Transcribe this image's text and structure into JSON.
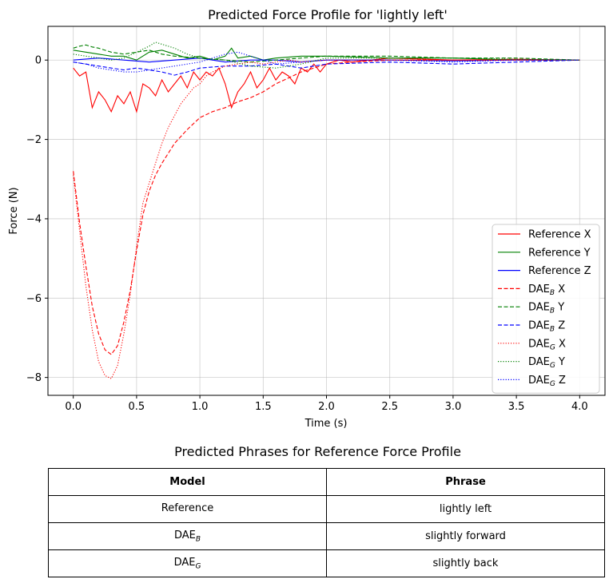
{
  "chart_data": {
    "type": "line",
    "title": "Predicted Force Profile for 'lightly left'",
    "xlabel": "Time (s)",
    "ylabel": "Force (N)",
    "xlim": [
      -0.2,
      4.2
    ],
    "ylim": [
      -8.45,
      0.85
    ],
    "xticks": [
      0.0,
      0.5,
      1.0,
      1.5,
      2.0,
      2.5,
      3.0,
      3.5,
      4.0
    ],
    "xtick_labels": [
      "0.0",
      "0.5",
      "1.0",
      "1.5",
      "2.0",
      "2.5",
      "3.0",
      "3.5",
      "4.0"
    ],
    "yticks": [
      0,
      -2,
      -4,
      -6,
      -8
    ],
    "ytick_labels": [
      "0",
      "−2",
      "−4",
      "−6",
      "−8"
    ],
    "grid": true,
    "legend_position": "lower-right",
    "series": [
      {
        "name": "Reference X",
        "color": "#ff0000",
        "style": "solid",
        "x": [
          0.0,
          0.05,
          0.1,
          0.15,
          0.2,
          0.25,
          0.3,
          0.35,
          0.4,
          0.45,
          0.5,
          0.55,
          0.6,
          0.65,
          0.7,
          0.75,
          0.8,
          0.85,
          0.9,
          0.95,
          1.0,
          1.05,
          1.1,
          1.15,
          1.2,
          1.25,
          1.3,
          1.35,
          1.4,
          1.45,
          1.5,
          1.55,
          1.6,
          1.65,
          1.7,
          1.75,
          1.8,
          1.85,
          1.9,
          1.95,
          2.0,
          2.1,
          2.2,
          2.5,
          3.0,
          3.5,
          4.0
        ],
        "y": [
          -0.2,
          -0.4,
          -0.3,
          -1.2,
          -0.8,
          -1.0,
          -1.3,
          -0.9,
          -1.1,
          -0.8,
          -1.3,
          -0.6,
          -0.7,
          -0.9,
          -0.5,
          -0.8,
          -0.6,
          -0.4,
          -0.7,
          -0.3,
          -0.5,
          -0.3,
          -0.4,
          -0.2,
          -0.6,
          -1.2,
          -0.8,
          -0.6,
          -0.3,
          -0.7,
          -0.5,
          -0.2,
          -0.5,
          -0.3,
          -0.4,
          -0.6,
          -0.2,
          -0.3,
          -0.1,
          -0.3,
          -0.1,
          0.0,
          -0.05,
          0.05,
          0.0,
          0.02,
          0.0
        ]
      },
      {
        "name": "Reference Y",
        "color": "#008000",
        "style": "solid",
        "x": [
          0.0,
          0.1,
          0.2,
          0.3,
          0.4,
          0.5,
          0.6,
          0.7,
          0.8,
          0.9,
          1.0,
          1.1,
          1.2,
          1.25,
          1.3,
          1.4,
          1.5,
          1.6,
          1.8,
          2.0,
          2.5,
          3.0,
          3.5,
          4.0
        ],
        "y": [
          0.25,
          0.2,
          0.15,
          0.1,
          0.1,
          0.0,
          0.2,
          0.25,
          0.15,
          0.05,
          0.1,
          0.0,
          0.1,
          0.3,
          0.05,
          0.1,
          0.0,
          0.05,
          0.1,
          0.1,
          0.05,
          0.05,
          0.0,
          0.0
        ]
      },
      {
        "name": "Reference Z",
        "color": "#0000ff",
        "style": "solid",
        "x": [
          0.0,
          0.2,
          0.4,
          0.6,
          0.8,
          1.0,
          1.2,
          1.4,
          1.6,
          1.8,
          2.0,
          2.5,
          3.0,
          3.5,
          4.0
        ],
        "y": [
          0.0,
          0.05,
          0.0,
          -0.05,
          0.0,
          0.05,
          -0.05,
          0.0,
          0.0,
          -0.05,
          0.0,
          0.0,
          -0.02,
          0.0,
          0.0
        ]
      },
      {
        "name": "DAE_B X",
        "color": "#ff0000",
        "style": "dashed",
        "x": [
          0.0,
          0.05,
          0.1,
          0.15,
          0.2,
          0.25,
          0.3,
          0.35,
          0.4,
          0.45,
          0.5,
          0.55,
          0.6,
          0.65,
          0.7,
          0.75,
          0.8,
          0.9,
          1.0,
          1.1,
          1.2,
          1.3,
          1.4,
          1.5,
          1.6,
          1.7,
          1.8,
          1.9,
          2.0,
          2.2,
          2.5,
          3.0,
          3.5,
          4.0
        ],
        "y": [
          -2.8,
          -4.1,
          -5.2,
          -6.2,
          -6.9,
          -7.3,
          -7.42,
          -7.2,
          -6.6,
          -5.8,
          -4.8,
          -3.9,
          -3.3,
          -2.9,
          -2.6,
          -2.35,
          -2.1,
          -1.75,
          -1.45,
          -1.3,
          -1.2,
          -1.05,
          -0.95,
          -0.8,
          -0.6,
          -0.45,
          -0.3,
          -0.2,
          -0.1,
          -0.05,
          0.0,
          0.0,
          0.0,
          0.0
        ]
      },
      {
        "name": "DAE_B Y",
        "color": "#008000",
        "style": "dashed",
        "x": [
          0.0,
          0.05,
          0.1,
          0.15,
          0.2,
          0.3,
          0.4,
          0.5,
          0.6,
          0.7,
          0.8,
          1.0,
          1.2,
          1.4,
          1.6,
          1.8,
          2.0,
          2.5,
          3.0,
          3.5,
          4.0
        ],
        "y": [
          0.3,
          0.35,
          0.38,
          0.33,
          0.3,
          0.2,
          0.15,
          0.2,
          0.25,
          0.15,
          0.1,
          0.05,
          0.0,
          -0.05,
          0.0,
          0.05,
          0.1,
          0.1,
          0.05,
          0.05,
          0.0
        ]
      },
      {
        "name": "DAE_B Z",
        "color": "#0000ff",
        "style": "dashed",
        "x": [
          0.0,
          0.1,
          0.2,
          0.3,
          0.4,
          0.5,
          0.6,
          0.7,
          0.8,
          0.9,
          1.0,
          1.2,
          1.4,
          1.6,
          1.8,
          2.0,
          2.5,
          3.0,
          3.5,
          4.0
        ],
        "y": [
          -0.05,
          -0.1,
          -0.15,
          -0.2,
          -0.25,
          -0.2,
          -0.25,
          -0.3,
          -0.38,
          -0.3,
          -0.2,
          -0.15,
          -0.15,
          -0.1,
          -0.2,
          -0.1,
          -0.05,
          -0.1,
          -0.05,
          0.0
        ]
      },
      {
        "name": "DAE_G X",
        "color": "#ff0000",
        "style": "dotted",
        "x": [
          0.0,
          0.05,
          0.1,
          0.15,
          0.2,
          0.25,
          0.3,
          0.35,
          0.4,
          0.45,
          0.5,
          0.55,
          0.6,
          0.65,
          0.7,
          0.75,
          0.8,
          0.85,
          0.9,
          0.95,
          1.0,
          1.05,
          1.1,
          1.2,
          1.3,
          1.4,
          1.5,
          1.6,
          1.7,
          1.8,
          2.0,
          2.5,
          3.0,
          3.5,
          4.0
        ],
        "y": [
          -2.9,
          -4.3,
          -5.7,
          -6.8,
          -7.6,
          -7.95,
          -8.03,
          -7.7,
          -6.9,
          -5.9,
          -4.7,
          -3.6,
          -3.1,
          -2.6,
          -2.1,
          -1.7,
          -1.4,
          -1.1,
          -0.9,
          -0.7,
          -0.6,
          -0.4,
          -0.3,
          -0.15,
          -0.1,
          -0.05,
          -0.1,
          -0.05,
          0.0,
          -0.05,
          0.0,
          0.0,
          0.0,
          0.0,
          0.0
        ]
      },
      {
        "name": "DAE_G Y",
        "color": "#008000",
        "style": "dotted",
        "x": [
          0.0,
          0.1,
          0.2,
          0.3,
          0.4,
          0.5,
          0.6,
          0.65,
          0.7,
          0.8,
          0.9,
          1.0,
          1.2,
          1.4,
          1.6,
          1.8,
          2.0,
          2.5,
          3.0,
          3.5,
          4.0
        ],
        "y": [
          0.15,
          0.1,
          0.05,
          0.0,
          0.05,
          0.2,
          0.35,
          0.45,
          0.4,
          0.3,
          0.15,
          0.05,
          0.0,
          -0.15,
          -0.2,
          -0.1,
          0.05,
          0.05,
          0.05,
          0.02,
          0.0
        ]
      },
      {
        "name": "DAE_G Z",
        "color": "#0000ff",
        "style": "dotted",
        "x": [
          0.0,
          0.1,
          0.2,
          0.3,
          0.4,
          0.5,
          0.6,
          0.8,
          1.0,
          1.2,
          1.3,
          1.4,
          1.6,
          1.8,
          2.0,
          2.5,
          3.0,
          3.5,
          4.0
        ],
        "y": [
          -0.05,
          -0.1,
          -0.2,
          -0.25,
          -0.3,
          -0.3,
          -0.25,
          -0.15,
          -0.05,
          0.15,
          0.2,
          0.1,
          -0.1,
          -0.05,
          0.0,
          0.0,
          -0.05,
          0.0,
          0.0
        ]
      }
    ],
    "legend_items": [
      {
        "base": "Reference X",
        "sub": "",
        "axis": ""
      },
      {
        "base": "Reference Y",
        "sub": "",
        "axis": ""
      },
      {
        "base": "Reference Z",
        "sub": "",
        "axis": ""
      },
      {
        "base": "DAE",
        "sub": "B",
        "axis": " X"
      },
      {
        "base": "DAE",
        "sub": "B",
        "axis": " Y"
      },
      {
        "base": "DAE",
        "sub": "B",
        "axis": " Z"
      },
      {
        "base": "DAE",
        "sub": "G",
        "axis": " X"
      },
      {
        "base": "DAE",
        "sub": "G",
        "axis": " Y"
      },
      {
        "base": "DAE",
        "sub": "G",
        "axis": " Z"
      }
    ]
  },
  "table": {
    "title": "Predicted Phrases for Reference Force Profile",
    "headers": {
      "model": "Model",
      "phrase": "Phrase"
    },
    "rows": [
      {
        "model": "Reference",
        "model_sub": "",
        "phrase": "lightly left"
      },
      {
        "model": "DAE",
        "model_sub": "B",
        "phrase": "slightly forward"
      },
      {
        "model": "DAE",
        "model_sub": "G",
        "phrase": "slightly  back"
      }
    ]
  }
}
